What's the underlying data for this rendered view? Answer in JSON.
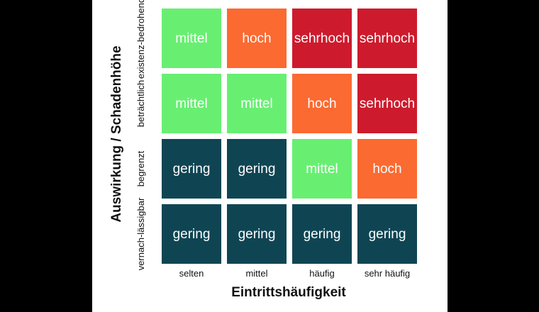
{
  "y_axis_title": "Auswirkung / Schadenhöhe",
  "x_axis_title": "Eintrittshäufigkeit",
  "rows": [
    {
      "label_lines": [
        "existenz-",
        "bedrohend"
      ],
      "cells": [
        [
          "mittel"
        ],
        [
          "hoch"
        ],
        [
          "sehr",
          "hoch"
        ],
        [
          "sehr",
          "hoch"
        ]
      ]
    },
    {
      "label_lines": [
        "beträchtlich"
      ],
      "cells": [
        [
          "mittel"
        ],
        [
          "mittel"
        ],
        [
          "hoch"
        ],
        [
          "sehr",
          "hoch"
        ]
      ]
    },
    {
      "label_lines": [
        "begrenzt"
      ],
      "cells": [
        [
          "gering"
        ],
        [
          "gering"
        ],
        [
          "mittel"
        ],
        [
          "hoch"
        ]
      ]
    },
    {
      "label_lines": [
        "vernach-",
        "lässigbar"
      ],
      "cells": [
        [
          "gering"
        ],
        [
          "gering"
        ],
        [
          "gering"
        ],
        [
          "gering"
        ]
      ]
    }
  ],
  "columns": [
    "selten",
    "mittel",
    "häufig",
    "sehr häufig"
  ],
  "level_colors": {
    "gering": "#0f4553",
    "mittel": "#68ef72",
    "hoch": "#fb6a31",
    "sehr hoch": "#cd1b2d"
  }
}
